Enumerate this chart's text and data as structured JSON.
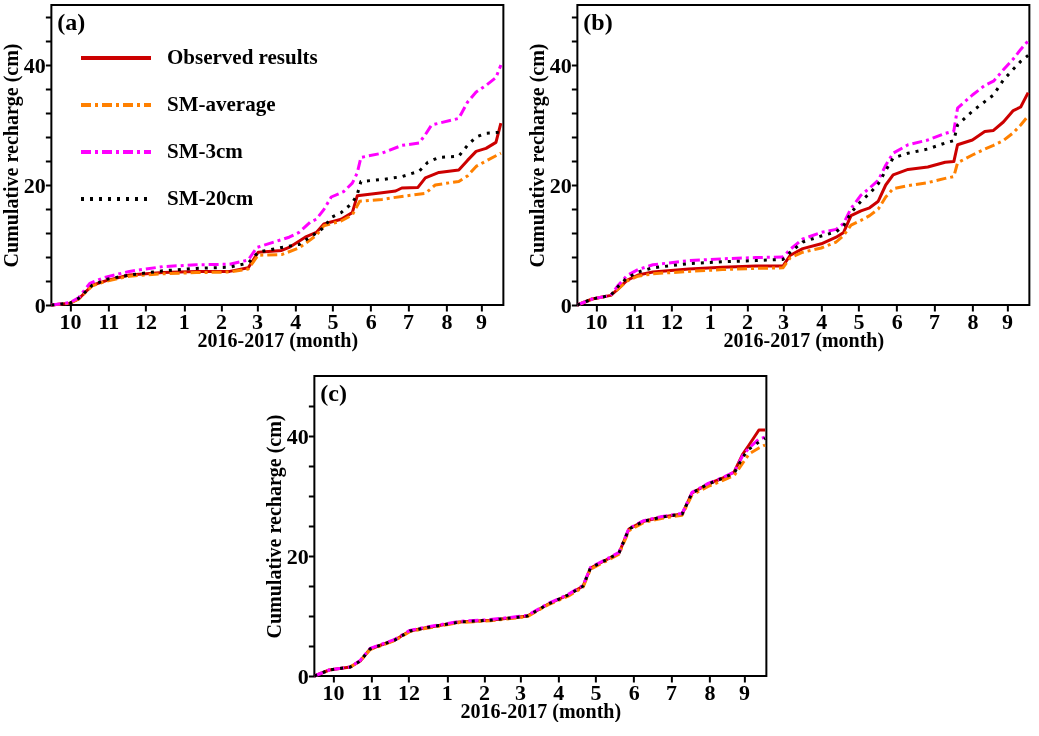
{
  "chart_data": [
    {
      "type": "line",
      "title": "(a)",
      "xlabel": "2016-2017 (month)",
      "ylabel": "Cumulative recharge (cm)",
      "xlim": [
        "2016-10-01",
        "2017-10-01"
      ],
      "ylim": [
        0,
        50
      ],
      "xticks": [
        {
          "value": "2016-10-16",
          "label": "10"
        },
        {
          "value": "2016-11-16",
          "label": "11"
        },
        {
          "value": "2016-12-16",
          "label": "12"
        },
        {
          "value": "2017-01-16",
          "label": "1"
        },
        {
          "value": "2017-02-15",
          "label": "2"
        },
        {
          "value": "2017-03-16",
          "label": "3"
        },
        {
          "value": "2017-04-16",
          "label": "4"
        },
        {
          "value": "2017-05-16",
          "label": "5"
        },
        {
          "value": "2017-06-16",
          "label": "6"
        },
        {
          "value": "2017-07-16",
          "label": "7"
        },
        {
          "value": "2017-08-16",
          "label": "8"
        },
        {
          "value": "2017-09-13",
          "label": "9"
        }
      ],
      "yticks": [
        0,
        {
          "value": 4,
          "label": null
        },
        {
          "value": 8,
          "label": null
        },
        {
          "value": 12,
          "label": null
        },
        {
          "value": 16,
          "label": null
        },
        20,
        {
          "value": 24,
          "label": null
        },
        {
          "value": 28,
          "label": null
        },
        {
          "value": 32,
          "label": null
        },
        {
          "value": 36,
          "label": null
        },
        40,
        {
          "value": 44,
          "label": null
        },
        {
          "value": 48,
          "label": null
        }
      ],
      "legend": "top left",
      "marker": "none",
      "series": [
        {
          "name": "Observed results",
          "color": "#cc0000",
          "line_style": "solid",
          "x": [
            "2016-10-01",
            "2016-10-16",
            "2016-10-23",
            "2016-11-03",
            "2016-11-15",
            "2016-12-03",
            "2016-12-30",
            "2017-01-26",
            "2017-02-22",
            "2017-03-09",
            "2017-03-17",
            "2017-04-05",
            "2017-04-11",
            "2017-04-24",
            "2017-05-03",
            "2017-05-09",
            "2017-05-23",
            "2017-06-01",
            "2017-06-05",
            "2017-06-25",
            "2017-07-06",
            "2017-07-11",
            "2017-07-24",
            "2017-07-30",
            "2017-08-10",
            "2017-08-26",
            "2017-09-02",
            "2017-09-09",
            "2017-09-17",
            "2017-09-25",
            "2017-09-29"
          ],
          "values": [
            0,
            0.3,
            1.0,
            3.3,
            4.1,
            5.0,
            5.4,
            5.6,
            5.6,
            6.2,
            8.8,
            9.1,
            9.6,
            11.3,
            12.1,
            13.5,
            14.3,
            15.4,
            18.2,
            18.7,
            19.0,
            19.5,
            19.6,
            21.2,
            22.1,
            22.5,
            24.1,
            25.6,
            26.1,
            27.1,
            30.3
          ]
        },
        {
          "name": "SM-average",
          "color": "#ff8000",
          "line_style": "dashed",
          "x": [
            "2016-10-01",
            "2016-10-16",
            "2016-10-23",
            "2016-11-03",
            "2016-11-15",
            "2016-12-03",
            "2016-12-30",
            "2017-01-26",
            "2017-02-22",
            "2017-03-09",
            "2017-03-17",
            "2017-04-05",
            "2017-04-19",
            "2017-05-03",
            "2017-05-09",
            "2017-05-23",
            "2017-06-01",
            "2017-06-07",
            "2017-06-25",
            "2017-07-11",
            "2017-07-30",
            "2017-08-07",
            "2017-08-26",
            "2017-09-02",
            "2017-09-09",
            "2017-09-17",
            "2017-09-29"
          ],
          "values": [
            0,
            0.3,
            1.0,
            3.2,
            4.0,
            4.8,
            5.2,
            5.4,
            5.5,
            6.0,
            8.3,
            8.4,
            9.5,
            11.6,
            13.2,
            14.0,
            15.0,
            17.3,
            17.6,
            18.1,
            18.6,
            20.0,
            20.6,
            21.5,
            23.1,
            24.0,
            25.3
          ]
        },
        {
          "name": "SM-3cm",
          "color": "#ff00ff",
          "line_style": "dashed",
          "x": [
            "2016-10-01",
            "2016-10-16",
            "2016-10-23",
            "2016-11-01",
            "2016-11-13",
            "2016-12-03",
            "2016-12-30",
            "2017-01-26",
            "2017-02-22",
            "2017-03-09",
            "2017-03-16",
            "2017-04-05",
            "2017-04-11",
            "2017-04-19",
            "2017-04-28",
            "2017-05-03",
            "2017-05-09",
            "2017-05-15",
            "2017-05-25",
            "2017-06-01",
            "2017-06-05",
            "2017-06-08",
            "2017-06-25",
            "2017-07-11",
            "2017-07-25",
            "2017-07-30",
            "2017-08-04",
            "2017-08-26",
            "2017-09-02",
            "2017-09-09",
            "2017-09-17",
            "2017-09-25",
            "2017-09-29"
          ],
          "values": [
            0,
            0.4,
            1.2,
            3.6,
            4.6,
            5.6,
            6.4,
            6.7,
            6.8,
            7.5,
            9.6,
            10.9,
            11.3,
            12.1,
            13.8,
            14.3,
            15.9,
            18.0,
            18.9,
            20.3,
            22.0,
            24.6,
            25.3,
            26.6,
            27.0,
            28.4,
            30.0,
            31.1,
            33.8,
            35.5,
            36.6,
            37.9,
            40.0
          ]
        },
        {
          "name": "SM-20cm",
          "color": "#000000",
          "line_style": "dotted",
          "x": [
            "2016-10-01",
            "2016-10-16",
            "2016-10-23",
            "2016-11-03",
            "2016-11-15",
            "2016-12-03",
            "2016-12-30",
            "2017-01-26",
            "2017-02-22",
            "2017-03-09",
            "2017-03-17",
            "2017-04-05",
            "2017-04-19",
            "2017-04-30",
            "2017-05-09",
            "2017-05-15",
            "2017-05-23",
            "2017-06-01",
            "2017-06-05",
            "2017-06-08",
            "2017-06-25",
            "2017-07-11",
            "2017-07-25",
            "2017-08-01",
            "2017-08-10",
            "2017-08-26",
            "2017-09-02",
            "2017-09-09",
            "2017-09-17",
            "2017-09-29"
          ],
          "values": [
            0,
            0.3,
            1.1,
            3.3,
            4.3,
            5.0,
            5.7,
            6.1,
            6.3,
            7.0,
            8.8,
            9.6,
            10.1,
            11.6,
            12.9,
            14.6,
            15.4,
            17.0,
            18.4,
            20.6,
            20.9,
            21.4,
            22.3,
            23.8,
            24.6,
            24.8,
            26.6,
            28.0,
            28.6,
            28.8
          ]
        }
      ]
    },
    {
      "type": "line",
      "title": "(b)",
      "xlabel": "2016-2017 (month)",
      "ylabel": "Cumulative recharge (cm)",
      "xlim": [
        "2016-10-01",
        "2017-10-01"
      ],
      "ylim": [
        0,
        50
      ],
      "xticks": [
        {
          "value": "2016-10-16",
          "label": "10"
        },
        {
          "value": "2016-11-16",
          "label": "11"
        },
        {
          "value": "2016-12-16",
          "label": "12"
        },
        {
          "value": "2017-01-16",
          "label": "1"
        },
        {
          "value": "2017-02-15",
          "label": "2"
        },
        {
          "value": "2017-03-16",
          "label": "3"
        },
        {
          "value": "2017-04-16",
          "label": "4"
        },
        {
          "value": "2017-05-16",
          "label": "5"
        },
        {
          "value": "2017-06-16",
          "label": "6"
        },
        {
          "value": "2017-07-16",
          "label": "7"
        },
        {
          "value": "2017-08-16",
          "label": "8"
        },
        {
          "value": "2017-09-13",
          "label": "9"
        }
      ],
      "yticks": [
        0,
        {
          "value": 4,
          "label": null
        },
        {
          "value": 8,
          "label": null
        },
        {
          "value": 12,
          "label": null
        },
        {
          "value": 16,
          "label": null
        },
        20,
        {
          "value": 24,
          "label": null
        },
        {
          "value": 28,
          "label": null
        },
        {
          "value": 32,
          "label": null
        },
        {
          "value": 36,
          "label": null
        },
        40,
        {
          "value": 44,
          "label": null
        },
        {
          "value": 48,
          "label": null
        }
      ],
      "marker": "none",
      "x": [
        "2016-10-01",
        "2016-10-13",
        "2016-10-28",
        "2016-11-03",
        "2016-11-10",
        "2016-11-19",
        "2016-12-01",
        "2016-12-30",
        "2017-01-26",
        "2017-02-22",
        "2017-03-16",
        "2017-03-22",
        "2017-04-01",
        "2017-04-16",
        "2017-04-28",
        "2017-05-04",
        "2017-05-10",
        "2017-05-18",
        "2017-05-25",
        "2017-06-01",
        "2017-06-07",
        "2017-06-13",
        "2017-06-25",
        "2017-07-11",
        "2017-07-25",
        "2017-08-01",
        "2017-08-04",
        "2017-08-16",
        "2017-08-26",
        "2017-09-02",
        "2017-09-10",
        "2017-09-18",
        "2017-09-24",
        "2017-09-30"
      ],
      "series": [
        {
          "color": "#cc0000",
          "line_style": "solid",
          "values": [
            0,
            1.0,
            1.6,
            2.7,
            4.1,
            5.0,
            5.5,
            6.0,
            6.3,
            6.5,
            6.5,
            8.3,
            9.4,
            10.2,
            11.3,
            12.1,
            14.9,
            15.7,
            16.2,
            17.3,
            20.0,
            21.7,
            22.6,
            23.0,
            23.8,
            23.9,
            26.7,
            27.5,
            28.9,
            29.1,
            30.5,
            32.4,
            33.0,
            35.4
          ]
        },
        {
          "color": "#ff8000",
          "line_style": "dashed",
          "values": [
            0,
            1.0,
            1.6,
            2.7,
            4.0,
            4.8,
            5.2,
            5.6,
            5.9,
            6.1,
            6.2,
            7.9,
            8.8,
            9.5,
            10.5,
            11.6,
            13.3,
            14.1,
            14.9,
            16.0,
            18.0,
            19.4,
            19.9,
            20.4,
            21.1,
            21.4,
            23.7,
            25.0,
            26.0,
            26.6,
            27.4,
            28.7,
            30.0,
            31.5
          ]
        },
        {
          "color": "#ff00ff",
          "line_style": "dashed",
          "values": [
            0,
            1.0,
            1.6,
            3.3,
            4.9,
            5.9,
            6.7,
            7.4,
            7.7,
            7.9,
            8.0,
            9.3,
            11.0,
            12.1,
            12.6,
            13.6,
            16.1,
            18.3,
            19.5,
            20.8,
            23.3,
            25.3,
            26.7,
            27.5,
            28.6,
            29.0,
            32.8,
            35.0,
            36.6,
            37.3,
            39.2,
            41.0,
            42.6,
            44.0
          ]
        },
        {
          "color": "#000000",
          "line_style": "dotted",
          "values": [
            0,
            1.0,
            1.6,
            3.1,
            4.5,
            5.5,
            6.2,
            6.9,
            7.2,
            7.4,
            7.6,
            8.8,
            10.5,
            11.5,
            12.2,
            13.2,
            15.4,
            17.3,
            18.6,
            20.2,
            22.4,
            24.5,
            25.3,
            26.0,
            27.0,
            27.4,
            30.0,
            32.3,
            33.9,
            35.0,
            37.5,
            39.3,
            40.6,
            41.6
          ]
        }
      ]
    },
    {
      "type": "line",
      "title": "(c)",
      "xlabel": "2016-2017 (month)",
      "ylabel": "Cumulative recharge (cm)",
      "xlim": [
        "2016-10-01",
        "2017-10-01"
      ],
      "ylim": [
        0,
        50
      ],
      "xticks": [
        {
          "value": "2016-10-16",
          "label": "10"
        },
        {
          "value": "2016-11-16",
          "label": "11"
        },
        {
          "value": "2016-12-16",
          "label": "12"
        },
        {
          "value": "2017-01-16",
          "label": "1"
        },
        {
          "value": "2017-02-15",
          "label": "2"
        },
        {
          "value": "2017-03-16",
          "label": "3"
        },
        {
          "value": "2017-04-16",
          "label": "4"
        },
        {
          "value": "2017-05-16",
          "label": "5"
        },
        {
          "value": "2017-06-16",
          "label": "6"
        },
        {
          "value": "2017-07-16",
          "label": "7"
        },
        {
          "value": "2017-08-16",
          "label": "8"
        },
        {
          "value": "2017-09-13",
          "label": "9"
        }
      ],
      "yticks": [
        0,
        {
          "value": 5,
          "label": null
        },
        {
          "value": 10,
          "label": null
        },
        {
          "value": 15,
          "label": null
        },
        20,
        {
          "value": 25,
          "label": null
        },
        {
          "value": 30,
          "label": null
        },
        {
          "value": 35,
          "label": null
        },
        40,
        {
          "value": 45,
          "label": null
        }
      ],
      "marker": "none",
      "x": [
        "2016-10-01",
        "2016-10-13",
        "2016-10-30",
        "2016-11-07",
        "2016-11-15",
        "2016-12-05",
        "2016-12-17",
        "2016-12-29",
        "2017-01-26",
        "2017-02-20",
        "2017-03-14",
        "2017-03-22",
        "2017-04-08",
        "2017-04-24",
        "2017-05-06",
        "2017-05-12",
        "2017-05-26",
        "2017-06-04",
        "2017-06-12",
        "2017-06-24",
        "2017-07-09",
        "2017-07-25",
        "2017-08-02",
        "2017-08-15",
        "2017-08-27",
        "2017-09-05",
        "2017-09-12",
        "2017-09-17",
        "2017-09-25",
        "2017-09-30"
      ],
      "series": [
        {
          "color": "#cc0000",
          "line_style": "solid",
          "values": [
            0,
            1.0,
            1.5,
            2.5,
            4.5,
            6.0,
            7.5,
            8.0,
            9.0,
            9.3,
            9.8,
            10.0,
            12.0,
            13.5,
            15.0,
            18.0,
            19.5,
            20.5,
            24.5,
            25.8,
            26.5,
            27.0,
            30.5,
            32.0,
            33.0,
            34.0,
            37.0,
            38.5,
            41.0,
            41.0
          ]
        },
        {
          "color": "#ff8000",
          "line_style": "dashed",
          "values": [
            null,
            null,
            1.5,
            2.5,
            4.4,
            5.9,
            7.4,
            7.9,
            8.9,
            9.2,
            9.7,
            9.9,
            11.9,
            13.3,
            14.8,
            17.8,
            19.3,
            20.3,
            24.2,
            25.6,
            26.3,
            26.8,
            30.2,
            31.6,
            32.6,
            33.4,
            35.5,
            37.0,
            38.0,
            38.5
          ]
        },
        {
          "color": "#ff00ff",
          "line_style": "dashed",
          "values": [
            0,
            1.0,
            1.5,
            2.6,
            4.6,
            6.1,
            7.6,
            8.1,
            9.1,
            9.4,
            9.9,
            10.1,
            12.1,
            13.6,
            15.1,
            18.1,
            19.6,
            20.6,
            24.6,
            25.9,
            26.6,
            27.1,
            30.6,
            32.1,
            33.1,
            34.0,
            36.8,
            38.0,
            39.5,
            39.8
          ]
        },
        {
          "color": "#000000",
          "line_style": "dotted",
          "values": [
            0,
            1.0,
            1.5,
            2.5,
            4.5,
            6.0,
            7.5,
            8.0,
            9.0,
            9.3,
            9.8,
            10.0,
            12.0,
            13.5,
            15.0,
            18.0,
            19.5,
            20.5,
            24.5,
            25.8,
            26.5,
            27.0,
            30.5,
            32.0,
            33.0,
            33.8,
            36.5,
            37.8,
            39.0,
            39.6
          ]
        }
      ]
    }
  ]
}
